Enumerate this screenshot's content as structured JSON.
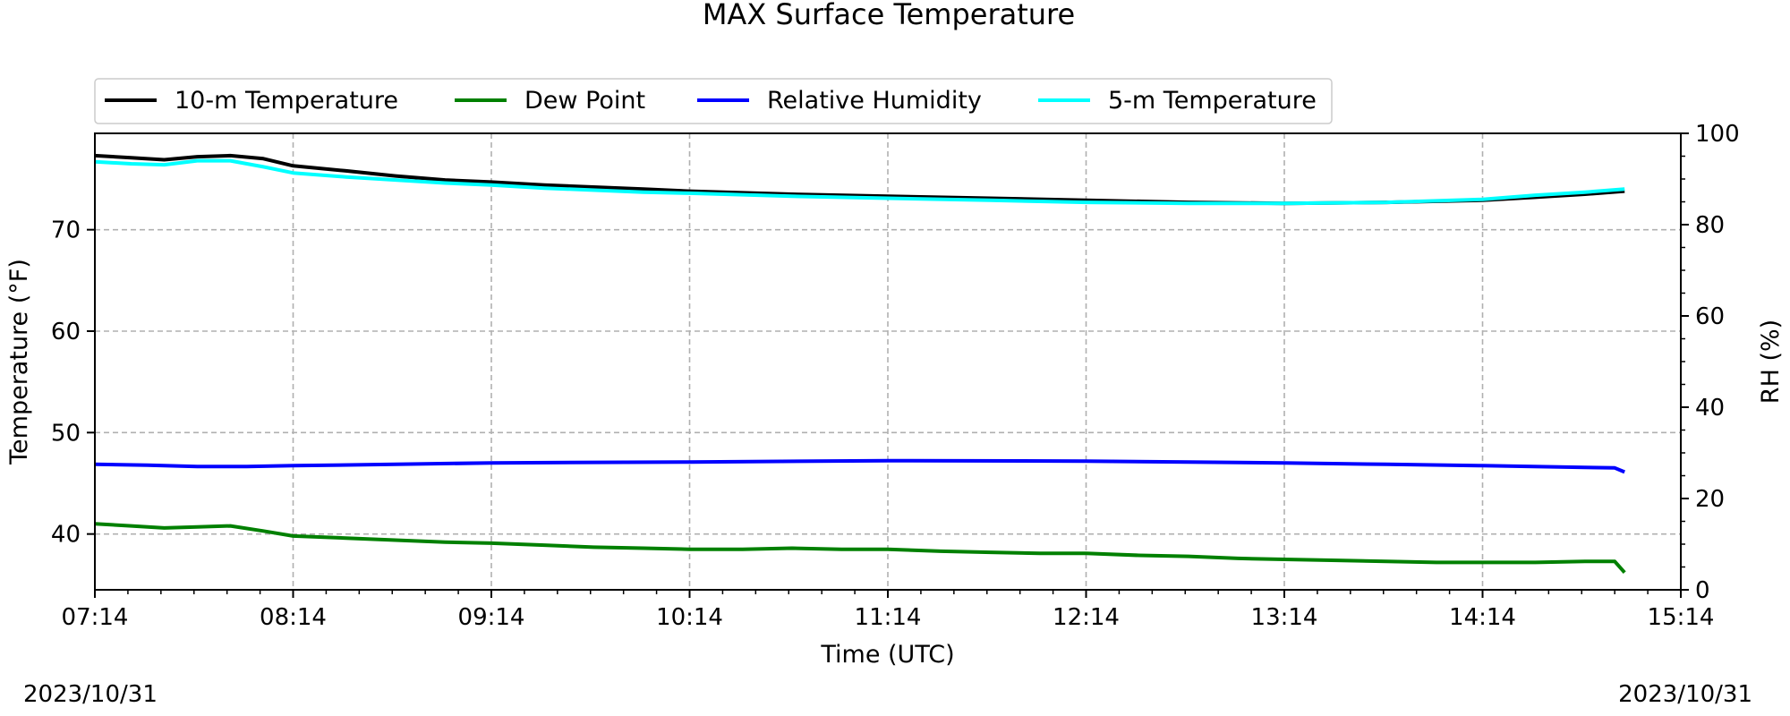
{
  "chart_data": {
    "type": "line",
    "title": "MAX Surface Temperature",
    "xlabel": "Time (UTC)",
    "ylabel": "Temperature ($^\\circ$F)",
    "ylabel_display": "Temperature (°F)",
    "y2label": "RH (%)",
    "x_ticks": [
      "07:14",
      "08:14",
      "09:14",
      "10:14",
      "11:14",
      "12:14",
      "13:14",
      "14:14",
      "15:14"
    ],
    "xlim": [
      "07:14",
      "15:14"
    ],
    "ylim": [
      34.5,
      79.5
    ],
    "y_ticks": [
      40,
      50,
      60,
      70
    ],
    "y2lim": [
      0,
      100
    ],
    "y2_ticks": [
      0,
      20,
      40,
      60,
      80,
      100
    ],
    "grid": true,
    "legend_position": "top-left, above plot",
    "date_left": "2023/10/31",
    "date_right": "2023/10/31",
    "series": [
      {
        "name": "10-m Temperature",
        "axis": "left",
        "color": "#000000",
        "points": [
          [
            "07:14",
            77.3
          ],
          [
            "07:25",
            77.1
          ],
          [
            "07:35",
            76.9
          ],
          [
            "07:45",
            77.2
          ],
          [
            "07:55",
            77.3
          ],
          [
            "08:05",
            77.0
          ],
          [
            "08:14",
            76.3
          ],
          [
            "08:30",
            75.8
          ],
          [
            "08:45",
            75.3
          ],
          [
            "09:00",
            74.9
          ],
          [
            "09:14",
            74.7
          ],
          [
            "09:30",
            74.4
          ],
          [
            "10:00",
            74.0
          ],
          [
            "10:14",
            73.8
          ],
          [
            "10:45",
            73.5
          ],
          [
            "11:14",
            73.3
          ],
          [
            "11:45",
            73.1
          ],
          [
            "12:14",
            72.9
          ],
          [
            "12:45",
            72.7
          ],
          [
            "13:14",
            72.6
          ],
          [
            "13:45",
            72.7
          ],
          [
            "14:14",
            72.9
          ],
          [
            "14:30",
            73.2
          ],
          [
            "14:45",
            73.5
          ],
          [
            "14:57",
            73.8
          ]
        ]
      },
      {
        "name": "Dew Point",
        "axis": "left",
        "color": "#008000",
        "points": [
          [
            "07:14",
            41.0
          ],
          [
            "07:25",
            40.8
          ],
          [
            "07:35",
            40.6
          ],
          [
            "07:45",
            40.7
          ],
          [
            "07:55",
            40.8
          ],
          [
            "08:05",
            40.3
          ],
          [
            "08:14",
            39.8
          ],
          [
            "08:30",
            39.6
          ],
          [
            "08:45",
            39.4
          ],
          [
            "09:00",
            39.2
          ],
          [
            "09:14",
            39.1
          ],
          [
            "09:30",
            38.9
          ],
          [
            "09:45",
            38.7
          ],
          [
            "10:00",
            38.6
          ],
          [
            "10:14",
            38.5
          ],
          [
            "10:30",
            38.5
          ],
          [
            "10:45",
            38.6
          ],
          [
            "11:00",
            38.5
          ],
          [
            "11:14",
            38.5
          ],
          [
            "11:30",
            38.3
          ],
          [
            "11:45",
            38.2
          ],
          [
            "12:00",
            38.1
          ],
          [
            "12:14",
            38.1
          ],
          [
            "12:30",
            37.9
          ],
          [
            "12:45",
            37.8
          ],
          [
            "13:00",
            37.6
          ],
          [
            "13:14",
            37.5
          ],
          [
            "13:30",
            37.4
          ],
          [
            "13:45",
            37.3
          ],
          [
            "14:00",
            37.2
          ],
          [
            "14:14",
            37.2
          ],
          [
            "14:30",
            37.2
          ],
          [
            "14:45",
            37.3
          ],
          [
            "14:54",
            37.3
          ],
          [
            "14:57",
            36.2
          ]
        ]
      },
      {
        "name": "Relative Humidity",
        "axis": "right",
        "color": "#0000ff",
        "points": [
          [
            "07:14",
            27.5
          ],
          [
            "07:30",
            27.3
          ],
          [
            "07:45",
            27.0
          ],
          [
            "08:00",
            27.0
          ],
          [
            "08:14",
            27.2
          ],
          [
            "08:45",
            27.5
          ],
          [
            "09:14",
            27.8
          ],
          [
            "10:14",
            28.0
          ],
          [
            "11:14",
            28.3
          ],
          [
            "12:14",
            28.2
          ],
          [
            "12:45",
            28.0
          ],
          [
            "13:14",
            27.8
          ],
          [
            "13:45",
            27.5
          ],
          [
            "14:14",
            27.2
          ],
          [
            "14:45",
            26.8
          ],
          [
            "14:54",
            26.7
          ],
          [
            "14:57",
            25.8
          ]
        ]
      },
      {
        "name": "5-m Temperature",
        "axis": "left",
        "color": "#00ffff",
        "points": [
          [
            "07:14",
            76.7
          ],
          [
            "07:25",
            76.5
          ],
          [
            "07:35",
            76.4
          ],
          [
            "07:45",
            76.8
          ],
          [
            "07:55",
            76.8
          ],
          [
            "08:05",
            76.2
          ],
          [
            "08:14",
            75.6
          ],
          [
            "08:30",
            75.2
          ],
          [
            "08:45",
            74.9
          ],
          [
            "09:00",
            74.6
          ],
          [
            "09:14",
            74.4
          ],
          [
            "09:30",
            74.1
          ],
          [
            "10:00",
            73.7
          ],
          [
            "10:14",
            73.6
          ],
          [
            "10:45",
            73.3
          ],
          [
            "11:14",
            73.1
          ],
          [
            "11:45",
            72.9
          ],
          [
            "12:14",
            72.7
          ],
          [
            "12:45",
            72.6
          ],
          [
            "13:14",
            72.6
          ],
          [
            "13:45",
            72.7
          ],
          [
            "14:14",
            73.0
          ],
          [
            "14:30",
            73.4
          ],
          [
            "14:45",
            73.7
          ],
          [
            "14:57",
            74.0
          ]
        ]
      }
    ]
  }
}
